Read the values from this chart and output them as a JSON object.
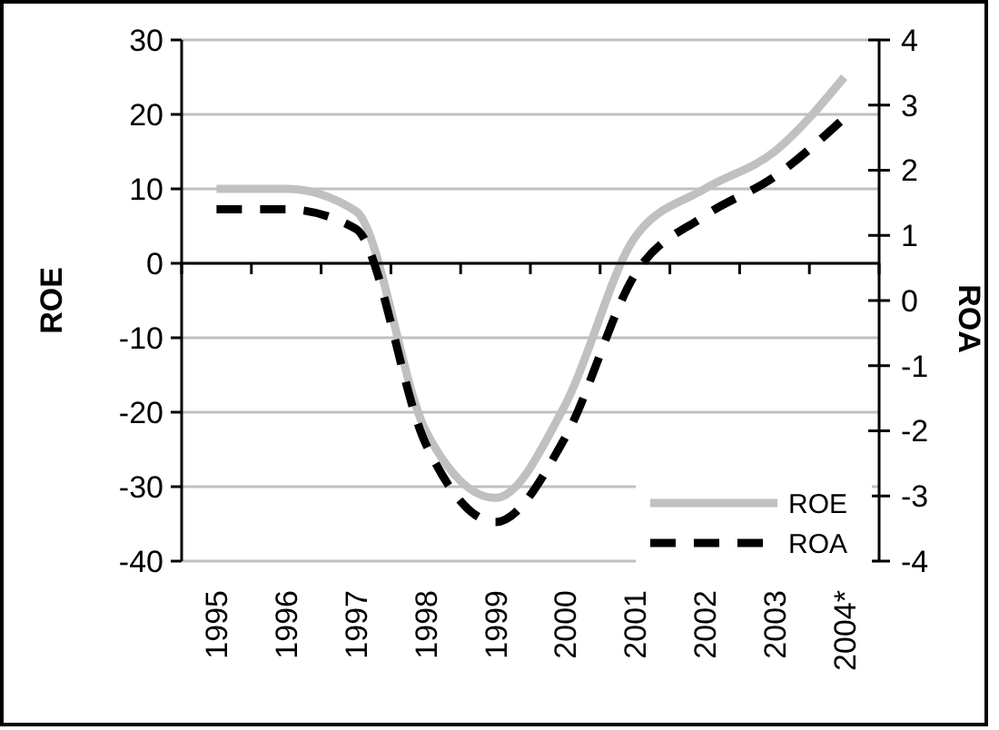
{
  "chart_data": {
    "type": "line",
    "ylabel": "ROE",
    "y2label": "ROA",
    "categories": [
      "1995",
      "1996",
      "1997",
      "1998",
      "1999",
      "2000",
      "2001",
      "2002",
      "2003",
      "2004*"
    ],
    "series": [
      {
        "name": "ROE",
        "color": "#c0c0c0",
        "line_style": "solid",
        "values": [
          10,
          10,
          7,
          -22.5,
          -31.5,
          -19,
          3.5,
          10,
          15,
          25
        ]
      },
      {
        "name": "ROA",
        "color": "#000000",
        "line_style": "dashed",
        "axis": "y2",
        "values": [
          1.4,
          1.4,
          1.1,
          -2.2,
          -3.4,
          -2.1,
          0.4,
          1.3,
          1.9,
          2.8
        ]
      }
    ],
    "ylim": [
      -40,
      30
    ],
    "yticks": [
      -40,
      -30,
      -20,
      -10,
      0,
      10,
      20,
      30
    ],
    "y2lim": [
      -4,
      4
    ],
    "y2ticks": [
      -4,
      -3,
      -2,
      -1,
      0,
      1,
      2,
      3,
      4
    ],
    "grid": "y",
    "legend": "bottom right",
    "marker": "none"
  }
}
